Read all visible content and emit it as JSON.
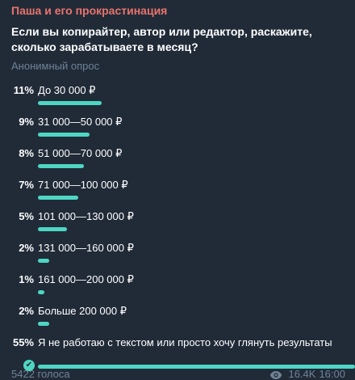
{
  "channel_name": "Паша и его прокрастинация",
  "question": "Если вы копирайтер, автор или редактор, раскажите, сколько зарабатываете в месяц?",
  "poll_type": "Анонимный опрос",
  "options": [
    {
      "percent": "11%",
      "label": "До 30 000 ₽",
      "value": 11
    },
    {
      "percent": "9%",
      "label": "31 000—50 000 ₽",
      "value": 9
    },
    {
      "percent": "8%",
      "label": "51 000—70 000 ₽",
      "value": 8
    },
    {
      "percent": "7%",
      "label": "71 000—100 000 ₽",
      "value": 7
    },
    {
      "percent": "5%",
      "label": "101 000—130 000 ₽",
      "value": 5
    },
    {
      "percent": "2%",
      "label": "131 000—160 000 ₽",
      "value": 2
    },
    {
      "percent": "1%",
      "label": "161 000—200 000 ₽",
      "value": 1
    },
    {
      "percent": "2%",
      "label": "Больше 200 000 ₽",
      "value": 2
    },
    {
      "percent": "55%",
      "label": "Я не работаю с текстом или просто хочу глянуть результаты",
      "value": 55,
      "chosen": true
    }
  ],
  "footer": {
    "votes": "5422 голоса",
    "views": "16.4K",
    "time": "16:00",
    "views_icon": "eye-icon"
  },
  "colors": {
    "accent": "#4ed6c4",
    "channel": "#e9736c",
    "background": "#212b38",
    "muted": "#6f8396"
  }
}
